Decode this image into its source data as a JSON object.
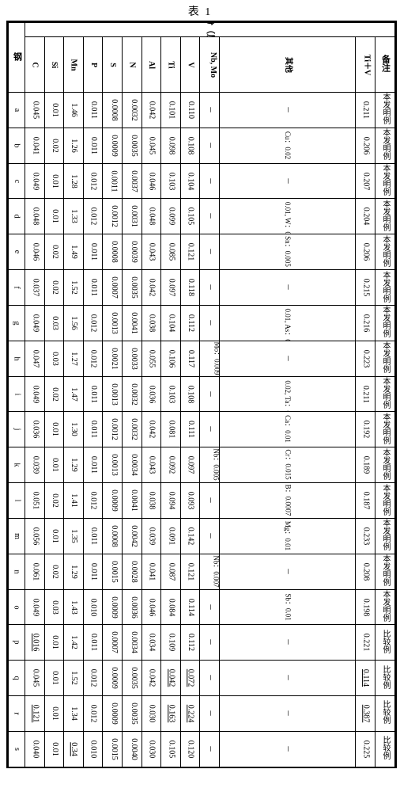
{
  "title": "表 1",
  "header": {
    "steel": "钢",
    "chem_group": "化学成分（质量%）",
    "remark": "备注",
    "cols": [
      "C",
      "Si",
      "Mn",
      "P",
      "S",
      "N",
      "Al",
      "Ti",
      "V",
      "Nb, Mo",
      "其他",
      "Ti＋V"
    ]
  },
  "remark_invention": "本发明例",
  "remark_compare": "比较例",
  "rows": [
    {
      "id": "a",
      "C": "0.045",
      "Si": "0.01",
      "Mn": "1.46",
      "P": "0.011",
      "S": "0.0008",
      "N": "0.0032",
      "Al": "0.042",
      "Ti": "0.101",
      "V": "0.110",
      "NbMo": "－",
      "Other": "－",
      "TiV": "0.211",
      "note": "inv"
    },
    {
      "id": "b",
      "C": "0.041",
      "Si": "0.02",
      "Mn": "1.26",
      "P": "0.011",
      "S": "0.0009",
      "N": "0.0035",
      "Al": "0.045",
      "Ti": "0.098",
      "V": "0.108",
      "NbMo": "－",
      "Other": "Cu：0.02",
      "TiV": "0.206",
      "note": "inv"
    },
    {
      "id": "c",
      "C": "0.049",
      "Si": "0.01",
      "Mn": "1.28",
      "P": "0.012",
      "S": "0.0011",
      "N": "0.0037",
      "Al": "0.046",
      "Ti": "0.103",
      "V": "0.104",
      "NbMo": "－",
      "Other": "－",
      "TiV": "0.207",
      "note": "inv"
    },
    {
      "id": "d",
      "C": "0.048",
      "Si": "0.01",
      "Mn": "1.33",
      "P": "0.012",
      "S": "0.0012",
      "N": "0.0031",
      "Al": "0.048",
      "Ti": "0.099",
      "V": "0.105",
      "NbMo": "－",
      "Other": "Ni：0.01, W：0.01",
      "TiV": "0.204",
      "note": "inv"
    },
    {
      "id": "e",
      "C": "0.046",
      "Si": "0.02",
      "Mn": "1.49",
      "P": "0.011",
      "S": "0.0008",
      "N": "0.0039",
      "Al": "0.043",
      "Ti": "0.085",
      "V": "0.121",
      "NbMo": "－",
      "Other": "Sn：0.005",
      "TiV": "0.206",
      "note": "inv"
    },
    {
      "id": "f",
      "C": "0.037",
      "Si": "0.02",
      "Mn": "1.52",
      "P": "0.011",
      "S": "0.0007",
      "N": "0.0035",
      "Al": "0.042",
      "Ti": "0.097",
      "V": "0.118",
      "NbMo": "－",
      "Other": "－",
      "TiV": "0.215",
      "note": "inv"
    },
    {
      "id": "g",
      "C": "0.049",
      "Si": "0.03",
      "Mn": "1.56",
      "P": "0.012",
      "S": "0.0013",
      "N": "0.0041",
      "Al": "0.038",
      "Ti": "0.104",
      "V": "0.112",
      "NbMo": "－",
      "Other": "Pb：0.01, As：0.01",
      "TiV": "0.216",
      "note": "inv"
    },
    {
      "id": "h",
      "C": "0.047",
      "Si": "0.03",
      "Mn": "1.27",
      "P": "0.012",
      "S": "0.0021",
      "N": "0.0033",
      "Al": "0.055",
      "Ti": "0.106",
      "V": "0.117",
      "NbMo": "Mo：0.009",
      "Other": "－",
      "TiV": "0.223",
      "note": "inv"
    },
    {
      "id": "i",
      "C": "0.049",
      "Si": "0.02",
      "Mn": "1.47",
      "P": "0.011",
      "S": "0.0013",
      "N": "0.0032",
      "Al": "0.036",
      "Ti": "0.103",
      "V": "0.108",
      "NbMo": "－",
      "Other": "Co：0.02, Ta：0.01",
      "TiV": "0.211",
      "note": "inv"
    },
    {
      "id": "j",
      "C": "0.036",
      "Si": "0.01",
      "Mn": "1.30",
      "P": "0.011",
      "S": "0.0012",
      "N": "0.0032",
      "Al": "0.042",
      "Ti": "0.081",
      "V": "0.111",
      "NbMo": "－",
      "Other": "Ca：0.01",
      "TiV": "0.192",
      "note": "inv"
    },
    {
      "id": "k",
      "C": "0.039",
      "Si": "0.01",
      "Mn": "1.29",
      "P": "0.011",
      "S": "0.0013",
      "N": "0.0034",
      "Al": "0.043",
      "Ti": "0.092",
      "V": "0.097",
      "NbMo": "Nb：0.005",
      "Other": "Cr：0.015",
      "TiV": "0.189",
      "note": "inv"
    },
    {
      "id": "l",
      "C": "0.051",
      "Si": "0.02",
      "Mn": "1.41",
      "P": "0.012",
      "S": "0.0009",
      "N": "0.0041",
      "Al": "0.038",
      "Ti": "0.094",
      "V": "0.093",
      "NbMo": "－",
      "Other": "B：0.0007",
      "TiV": "0.187",
      "note": "inv"
    },
    {
      "id": "m",
      "C": "0.056",
      "Si": "0.01",
      "Mn": "1.35",
      "P": "0.011",
      "S": "0.0008",
      "N": "0.0042",
      "Al": "0.039",
      "Ti": "0.091",
      "V": "0.142",
      "NbMo": "－",
      "Other": "Mg：0.01",
      "TiV": "0.233",
      "note": "inv"
    },
    {
      "id": "n",
      "C": "0.061",
      "Si": "0.02",
      "Mn": "1.29",
      "P": "0.011",
      "S": "0.0015",
      "N": "0.0028",
      "Al": "0.041",
      "Ti": "0.087",
      "V": "0.121",
      "NbMo": "Nb：0.007",
      "Other": "－",
      "TiV": "0.208",
      "note": "inv"
    },
    {
      "id": "o",
      "C": "0.049",
      "Si": "0.03",
      "Mn": "1.43",
      "P": "0.010",
      "S": "0.0009",
      "N": "0.0036",
      "Al": "0.046",
      "Ti": "0.084",
      "V": "0.114",
      "NbMo": "－",
      "Other": "Sb：0.01",
      "TiV": "0.198",
      "note": "inv"
    },
    {
      "id": "p",
      "C": "0.016",
      "Si": "0.01",
      "Mn": "1.42",
      "P": "0.011",
      "S": "0.0007",
      "N": "0.0034",
      "Al": "0.034",
      "Ti": "0.109",
      "V": "0.112",
      "NbMo": "－",
      "Other": "－",
      "TiV": "0.221",
      "note": "cmp",
      "u": [
        "C"
      ]
    },
    {
      "id": "q",
      "C": "0.045",
      "Si": "0.01",
      "Mn": "1.52",
      "P": "0.012",
      "S": "0.0009",
      "N": "0.0035",
      "Al": "0.042",
      "Ti": "0.042",
      "V": "0.072",
      "NbMo": "－",
      "Other": "－",
      "TiV": "0.114",
      "note": "cmp",
      "u": [
        "Ti",
        "V",
        "TiV"
      ]
    },
    {
      "id": "r",
      "C": "0.121",
      "Si": "0.01",
      "Mn": "1.34",
      "P": "0.012",
      "S": "0.0009",
      "N": "0.0035",
      "Al": "0.030",
      "Ti": "0.163",
      "V": "0.224",
      "NbMo": "－",
      "Other": "－",
      "TiV": "0.387",
      "note": "cmp",
      "u": [
        "C",
        "Ti",
        "V",
        "TiV"
      ]
    },
    {
      "id": "s",
      "C": "0.040",
      "Si": "0.01",
      "Mn": "0.34",
      "P": "0.010",
      "S": "0.0015",
      "N": "0.0040",
      "Al": "0.030",
      "Ti": "0.105",
      "V": "0.120",
      "NbMo": "－",
      "Other": "－",
      "TiV": "0.225",
      "note": "cmp",
      "u": [
        "Mn"
      ]
    }
  ],
  "colors": {
    "fg": "#000000",
    "bg": "#ffffff"
  },
  "fontsize_pt": 10
}
